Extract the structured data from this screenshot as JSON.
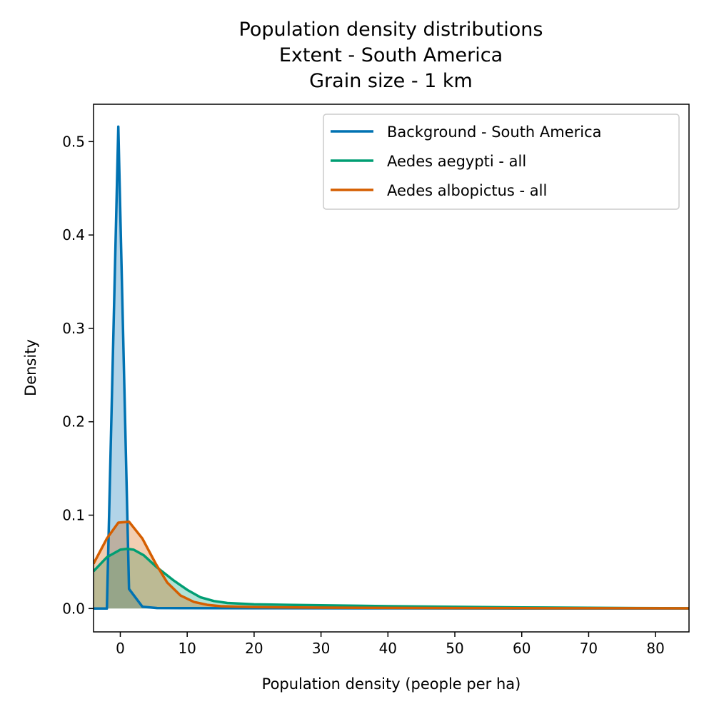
{
  "chart_data": {
    "type": "area",
    "title": [
      "Population density distributions",
      "Extent - South America",
      "Grain size - 1 km"
    ],
    "xlabel": "Population density (people per ha)",
    "ylabel": "Density",
    "xlim": [
      -4,
      85
    ],
    "ylim": [
      -0.025,
      0.54
    ],
    "xticks": [
      0,
      10,
      20,
      30,
      40,
      50,
      60,
      70,
      80
    ],
    "yticks": [
      0.0,
      0.1,
      0.2,
      0.3,
      0.4,
      0.5
    ],
    "xtick_labels": [
      "0",
      "10",
      "20",
      "30",
      "40",
      "50",
      "60",
      "70",
      "80"
    ],
    "ytick_labels": [
      "0.0",
      "0.1",
      "0.2",
      "0.3",
      "0.4",
      "0.5"
    ],
    "grid": false,
    "legend_position": "top-right",
    "series": [
      {
        "name": "Background - South America",
        "color": "#0072B2",
        "fill": "#0072B2",
        "x": [
          -4,
          -2,
          -0.3,
          1.3,
          3.3,
          5.5,
          10,
          20,
          40,
          60,
          85
        ],
        "y": [
          0.0,
          0.0,
          0.516,
          0.021,
          0.002,
          0.0005,
          0.0004,
          0.0003,
          0.0002,
          0.0001,
          0.0
        ]
      },
      {
        "name": "Aedes aegypti - all",
        "color": "#009E73",
        "fill": "#009E73",
        "x": [
          -4,
          -2,
          0,
          1,
          2,
          3.5,
          5.5,
          8,
          10,
          12,
          14,
          16,
          20,
          25,
          30,
          40,
          50,
          60,
          70,
          85
        ],
        "y": [
          0.04,
          0.055,
          0.063,
          0.064,
          0.063,
          0.057,
          0.044,
          0.03,
          0.02,
          0.012,
          0.008,
          0.006,
          0.0045,
          0.004,
          0.0035,
          0.0025,
          0.0018,
          0.0012,
          0.0008,
          0.0003
        ]
      },
      {
        "name": "Aedes albopictus - all",
        "color": "#D55E00",
        "fill": "#D55E00",
        "x": [
          -4,
          -2,
          -0.3,
          1.3,
          3.3,
          5.3,
          7,
          9,
          11,
          13,
          15,
          20,
          30,
          40,
          60,
          85
        ],
        "y": [
          0.048,
          0.075,
          0.092,
          0.093,
          0.075,
          0.048,
          0.028,
          0.014,
          0.007,
          0.004,
          0.0025,
          0.0015,
          0.001,
          0.0007,
          0.0004,
          0.0002
        ]
      }
    ]
  }
}
